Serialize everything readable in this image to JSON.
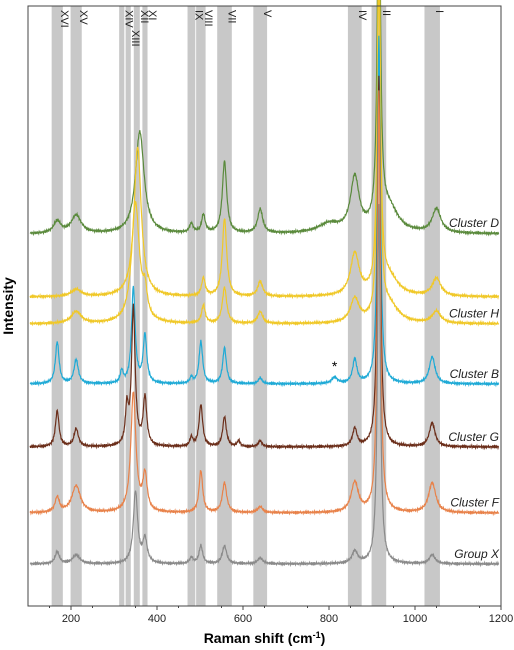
{
  "chart_data": {
    "type": "line",
    "xlabel": "Raman shift (cm",
    "xlabel_sup": "-1",
    "xlabel_close": ")",
    "ylabel": "Intensity",
    "xlim": [
      100,
      1200
    ],
    "xticks": [
      "200",
      "400",
      "600",
      "800",
      "1000",
      "1200"
    ],
    "xtick_values": [
      200,
      400,
      600,
      800,
      1000,
      1200
    ],
    "grid": false,
    "band_color": "#c8c8c8",
    "bands": [
      {
        "label": "XVI",
        "center": 168,
        "width": 26
      },
      {
        "label": "XV",
        "center": 212,
        "width": 26
      },
      {
        "label": "XIV",
        "center": 318,
        "width": 12
      },
      {
        "label": "XIII",
        "center": 333,
        "width": 12
      },
      {
        "label": "XII",
        "center": 353,
        "width": 14
      },
      {
        "label": "XI",
        "center": 372,
        "width": 12
      },
      {
        "label": "IX",
        "center": 480,
        "width": 18
      },
      {
        "label": "VIII",
        "center": 502,
        "width": 22
      },
      {
        "label": "VII",
        "center": 557,
        "width": 34
      },
      {
        "label": "V",
        "center": 640,
        "width": 32
      },
      {
        "label": "IV",
        "center": 860,
        "width": 32
      },
      {
        "label": "II",
        "center": 916,
        "width": 34
      },
      {
        "label": "I",
        "center": 1040,
        "width": 36
      }
    ],
    "annotation": {
      "text": "*",
      "x": 813
    },
    "series": [
      {
        "name": "Cluster D",
        "color": "#5a8a3c",
        "offset": 0.62,
        "peaks": [
          [
            168,
            0.02,
            10
          ],
          [
            212,
            0.03,
            14
          ],
          [
            360,
            0.17,
            12
          ],
          [
            480,
            0.015,
            5
          ],
          [
            508,
            0.03,
            5
          ],
          [
            557,
            0.12,
            6
          ],
          [
            640,
            0.04,
            7
          ],
          [
            800,
            0.015,
            30
          ],
          [
            860,
            0.09,
            12
          ],
          [
            916,
            0.67,
            4
          ],
          [
            940,
            0.04,
            25
          ],
          [
            1050,
            0.04,
            12
          ]
        ]
      },
      {
        "name": "",
        "color": "#f0c828",
        "offset": 0.515,
        "peaks": [
          [
            212,
            0.012,
            14
          ],
          [
            355,
            0.25,
            10
          ],
          [
            508,
            0.03,
            5
          ],
          [
            557,
            0.13,
            6
          ],
          [
            640,
            0.025,
            7
          ],
          [
            860,
            0.07,
            12
          ],
          [
            916,
            0.62,
            4
          ],
          [
            940,
            0.03,
            25
          ],
          [
            1050,
            0.03,
            12
          ]
        ]
      },
      {
        "name": "Cluster H",
        "color": "#f0c828",
        "offset": 0.47,
        "peaks": [
          [
            212,
            0.02,
            14
          ],
          [
            350,
            0.2,
            11
          ],
          [
            372,
            0.04,
            6
          ],
          [
            508,
            0.03,
            5
          ],
          [
            557,
            0.06,
            6
          ],
          [
            640,
            0.02,
            7
          ],
          [
            860,
            0.04,
            12
          ],
          [
            916,
            0.58,
            4
          ],
          [
            940,
            0.03,
            25
          ],
          [
            1050,
            0.02,
            12
          ]
        ]
      },
      {
        "name": "Cluster B",
        "color": "#1faad6",
        "offset": 0.37,
        "peaks": [
          [
            168,
            0.07,
            5
          ],
          [
            212,
            0.04,
            6
          ],
          [
            318,
            0.02,
            4
          ],
          [
            345,
            0.16,
            5
          ],
          [
            372,
            0.08,
            5
          ],
          [
            480,
            0.01,
            4
          ],
          [
            502,
            0.07,
            5
          ],
          [
            557,
            0.06,
            5
          ],
          [
            640,
            0.01,
            5
          ],
          [
            813,
            0.01,
            8
          ],
          [
            860,
            0.04,
            6
          ],
          [
            916,
            0.58,
            4
          ],
          [
            1040,
            0.045,
            8
          ]
        ]
      },
      {
        "name": "Cluster G",
        "color": "#6b2e1a",
        "offset": 0.265,
        "peaks": [
          [
            168,
            0.06,
            5
          ],
          [
            212,
            0.03,
            6
          ],
          [
            330,
            0.06,
            4
          ],
          [
            345,
            0.23,
            5
          ],
          [
            372,
            0.08,
            5
          ],
          [
            480,
            0.015,
            4
          ],
          [
            502,
            0.07,
            5
          ],
          [
            557,
            0.05,
            5
          ],
          [
            590,
            0.01,
            4
          ],
          [
            640,
            0.01,
            5
          ],
          [
            860,
            0.03,
            6
          ],
          [
            916,
            0.62,
            4
          ],
          [
            1040,
            0.04,
            8
          ]
        ]
      },
      {
        "name": "Cluster F",
        "color": "#e8824a",
        "offset": 0.155,
        "peaks": [
          [
            168,
            0.025,
            6
          ],
          [
            212,
            0.045,
            12
          ],
          [
            345,
            0.2,
            7
          ],
          [
            372,
            0.06,
            6
          ],
          [
            502,
            0.07,
            5
          ],
          [
            557,
            0.05,
            6
          ],
          [
            640,
            0.01,
            7
          ],
          [
            860,
            0.05,
            10
          ],
          [
            916,
            0.7,
            4
          ],
          [
            1040,
            0.05,
            10
          ]
        ]
      },
      {
        "name": "Group X",
        "color": "#8a8a8a",
        "offset": 0.07,
        "peaks": [
          [
            168,
            0.02,
            6
          ],
          [
            212,
            0.015,
            10
          ],
          [
            350,
            0.12,
            6
          ],
          [
            372,
            0.04,
            6
          ],
          [
            480,
            0.01,
            5
          ],
          [
            502,
            0.03,
            5
          ],
          [
            557,
            0.03,
            6
          ],
          [
            640,
            0.01,
            7
          ],
          [
            860,
            0.02,
            8
          ],
          [
            916,
            0.6,
            4
          ],
          [
            1040,
            0.015,
            8
          ]
        ]
      }
    ]
  }
}
